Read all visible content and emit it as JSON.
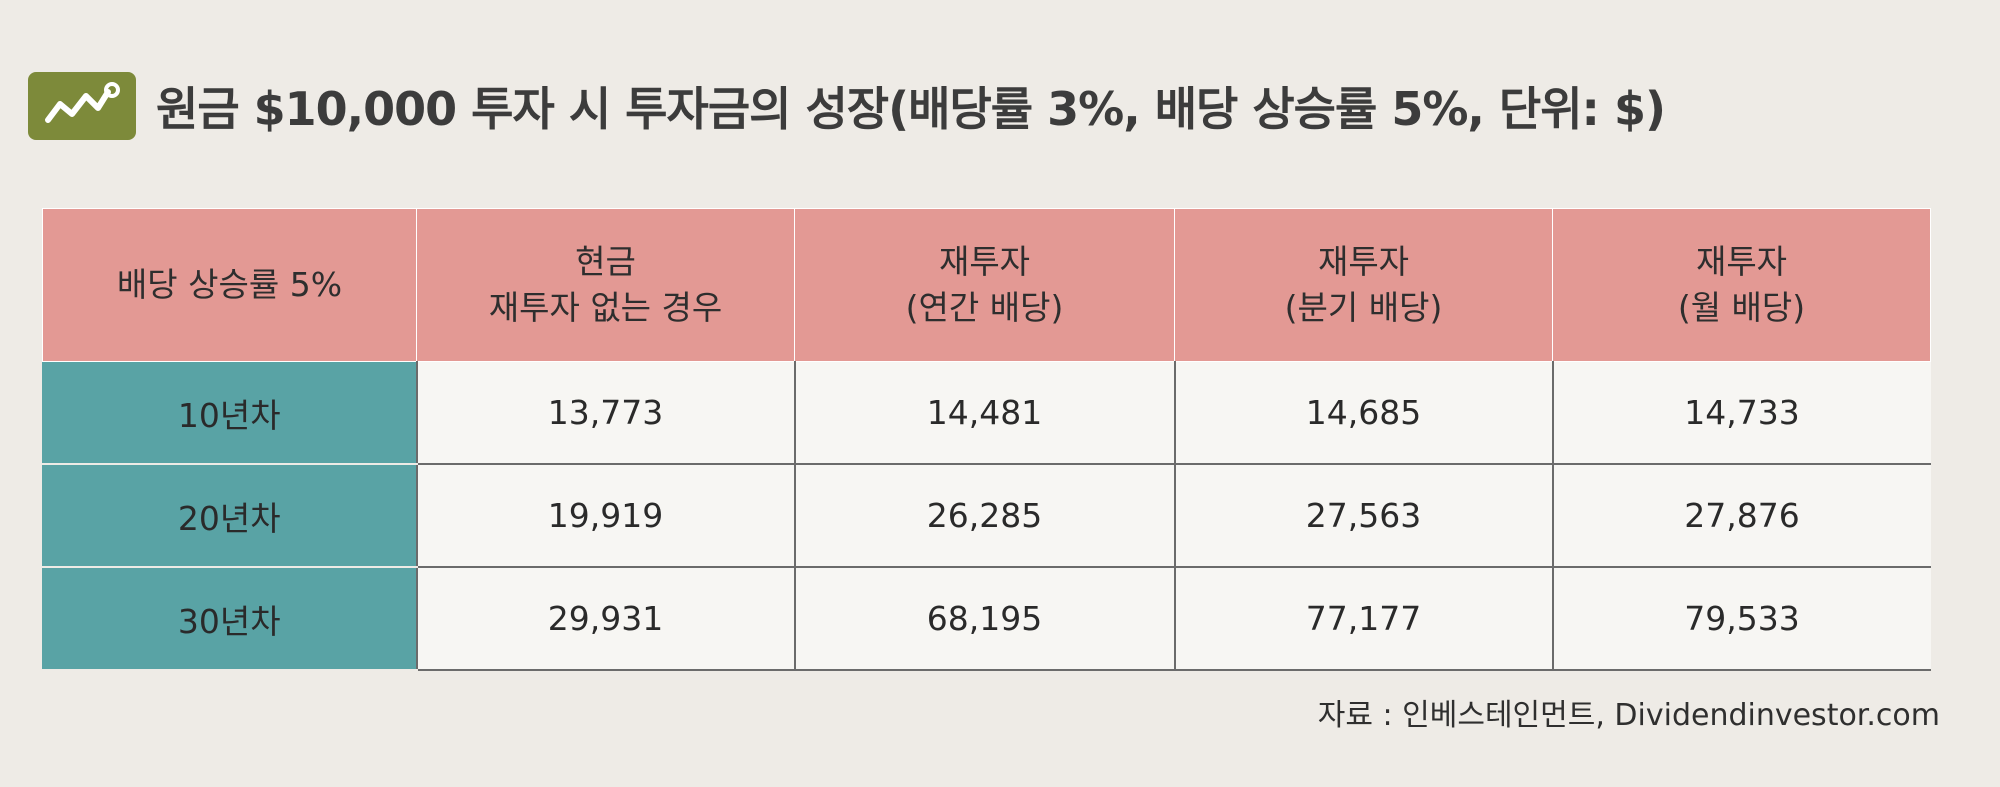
{
  "header": {
    "title": "원금 $10,000 투자 시 투자금의 성장(배당률 3%, 배당 상승률 5%, 단위: $)",
    "icon": "growth-chart-icon",
    "icon_color": "#7d8a3a"
  },
  "chart_data": {
    "type": "table",
    "title": "원금 $10,000 투자 시 투자금의 성장(배당률 3%, 배당 상승률 5%, 단위: $)",
    "corner_header": "배당 상승률 5%",
    "columns": [
      {
        "line1": "현금",
        "line2": "재투자 없는 경우"
      },
      {
        "line1": "재투자",
        "line2": "(연간 배당)"
      },
      {
        "line1": "재투자",
        "line2": "(분기 배당)"
      },
      {
        "line1": "재투자",
        "line2": "(월 배당)"
      }
    ],
    "rows": [
      {
        "label": "10년차",
        "values": [
          "13,773",
          "14,481",
          "14,685",
          "14,733"
        ]
      },
      {
        "label": "20년차",
        "values": [
          "19,919",
          "26,285",
          "27,563",
          "27,876"
        ]
      },
      {
        "label": "30년차",
        "values": [
          "29,931",
          "68,195",
          "77,177",
          "79,533"
        ]
      }
    ],
    "colors": {
      "header_bg": "#e39994",
      "row_label_bg": "#59a3a5",
      "cell_bg": "#f7f6f3"
    }
  },
  "footer": {
    "source": "자료 : 인베스테인먼트, Dividendinvestor.com"
  }
}
